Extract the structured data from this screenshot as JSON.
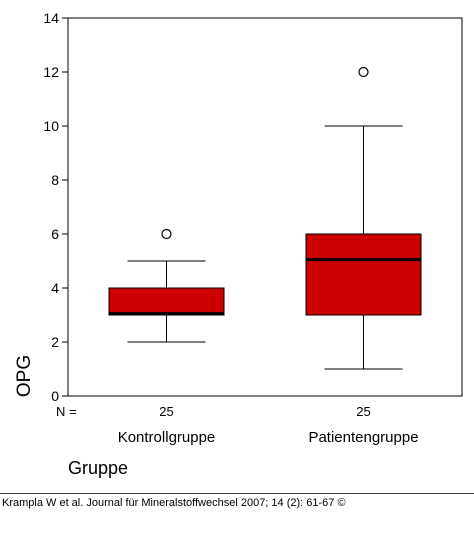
{
  "chart_data": {
    "type": "boxplot",
    "ylabel": "OPG",
    "xlabel": "Gruppe",
    "n_label": "N =",
    "ylim": [
      0,
      14
    ],
    "yticks": [
      0,
      2,
      4,
      6,
      8,
      10,
      12,
      14
    ],
    "grid": false,
    "box_color": "#cc0000",
    "categories": [
      "Kontrollgruppe",
      "Patientengruppe"
    ],
    "n": [
      "25",
      "25"
    ],
    "boxes": [
      {
        "whisker_low": 2,
        "q1": 3,
        "median": 3.05,
        "q3": 4,
        "whisker_high": 5,
        "outliers": [
          6
        ]
      },
      {
        "whisker_low": 1,
        "q1": 3,
        "median": 5.05,
        "q3": 6,
        "whisker_high": 10,
        "outliers": [
          12
        ]
      }
    ]
  },
  "citation": "Krampla W et al. Journal für Mineralstoffwechsel 2007; 14 (2): 61-67 ©"
}
